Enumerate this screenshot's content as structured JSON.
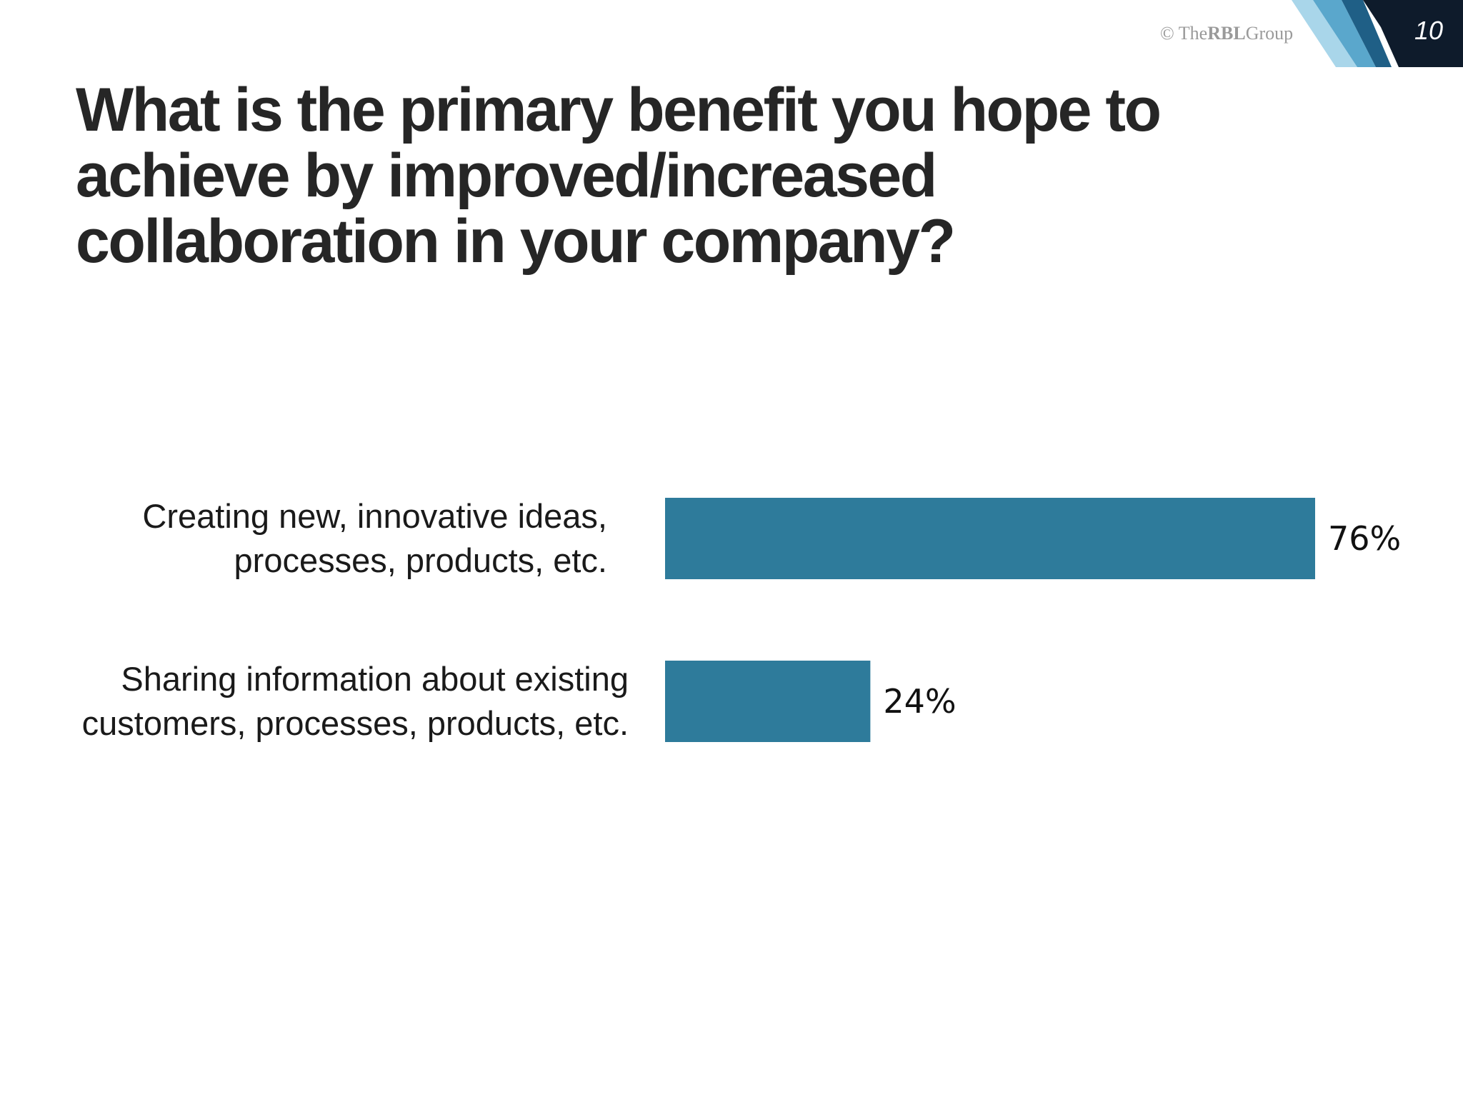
{
  "slide": {
    "page_number": "10",
    "copyright_symbol": "©",
    "copyright_brand_prefix": "The",
    "copyright_brand": "RBL",
    "copyright_brand_suffix": "Group",
    "title": "What is the primary benefit you hope to achieve by improved/increased collaboration in your company?"
  },
  "colors": {
    "bar": "#2e7b9b",
    "corner_dark": "#0e1b2b",
    "corner_mid": "#1f5f86",
    "corner_light": "#5aa7cc",
    "corner_pale": "#a9d6ea"
  },
  "chart_data": {
    "type": "bar",
    "orientation": "horizontal",
    "title": "",
    "xlabel": "",
    "ylabel": "",
    "xlim": [
      0,
      100
    ],
    "grid": false,
    "categories": [
      [
        "Creating new, innovative ideas,",
        "processes, products, etc."
      ],
      [
        "Sharing information about existing",
        "customers, processes, products, etc."
      ]
    ],
    "values": [
      76,
      24
    ],
    "value_labels": [
      "76%",
      "24%"
    ]
  }
}
